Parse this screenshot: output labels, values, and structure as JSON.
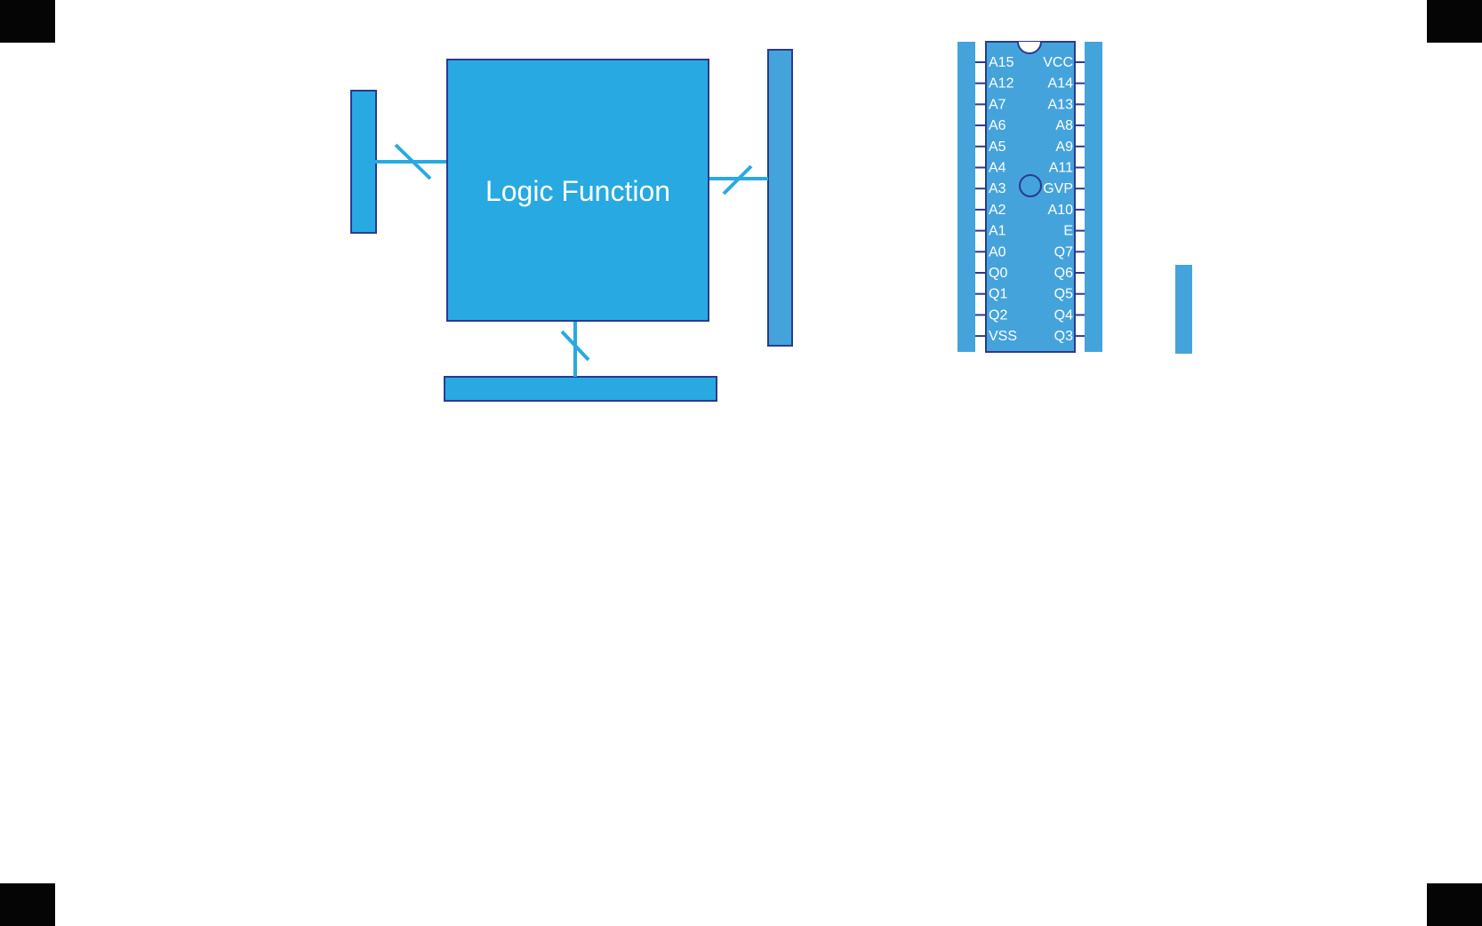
{
  "logic_block": {
    "label": "Logic Function"
  },
  "chip": {
    "left_pins": [
      "A15",
      "A12",
      "A7",
      "A6",
      "A5",
      "A4",
      "A3",
      "A2",
      "A1",
      "A0",
      "Q0",
      "Q1",
      "Q2",
      "VSS"
    ],
    "right_pins": [
      "VCC",
      "A14",
      "A13",
      "A8",
      "A9",
      "A11",
      "GVP",
      "A10",
      "E",
      "Q7",
      "Q6",
      "Q5",
      "Q4",
      "Q3"
    ]
  },
  "colors": {
    "block_fill": "#29a9e1",
    "bar_fill": "#45a3dc",
    "outline": "#2b3a8f",
    "wire": "#29a9e1",
    "corner_mark": "#050505"
  }
}
